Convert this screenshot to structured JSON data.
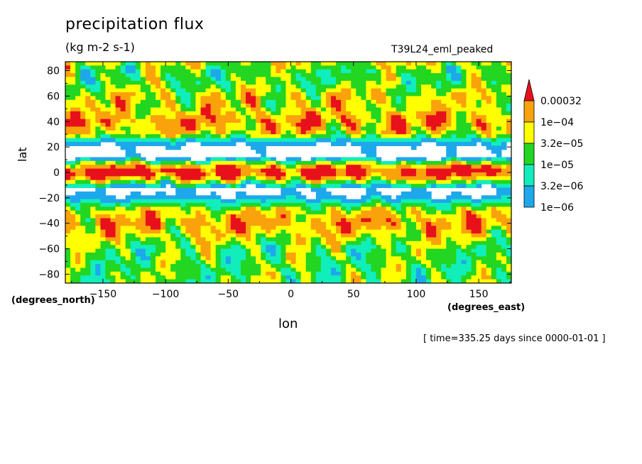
{
  "chart_data": {
    "type": "heatmap",
    "title": "precipitation flux",
    "units": "(kg m-2 s-1)",
    "run_label": "T39L24_eml_peaked",
    "xlabel": "lon",
    "xunits": "(degrees_east)",
    "ylabel": "lat",
    "yunits": "(degrees_north)",
    "timestamp": "[ time=335.25 days since 0000-01-01 ]",
    "xlim": [
      -180,
      176
    ],
    "ylim": [
      -87,
      87
    ],
    "xticks": [
      -150,
      -100,
      -50,
      0,
      50,
      100,
      150
    ],
    "yticks": [
      -80,
      -60,
      -40,
      -20,
      0,
      20,
      40,
      60,
      80
    ],
    "colorbar": {
      "labels": [
        "0.00032",
        "1e-04",
        "3.2e-05",
        "1e-05",
        "3.2e-06",
        "1e-06"
      ],
      "colors": [
        "#e8111b",
        "#f9a20b",
        "#ffff00",
        "#22d622",
        "#11eebb",
        "#1ea8ec"
      ],
      "extend": "max"
    },
    "latitude_profile": {
      "lat": [
        -87,
        -80,
        -70,
        -60,
        -50,
        -40,
        -30,
        -20,
        -14,
        -8,
        -4,
        0,
        4,
        8,
        12,
        18,
        24,
        30,
        40,
        50,
        60,
        70,
        80,
        87
      ],
      "typical_level_index": [
        3,
        3,
        3,
        3,
        2,
        1,
        2,
        5,
        6,
        3,
        1,
        0,
        1,
        3,
        6,
        6,
        5,
        2,
        1,
        2,
        2,
        3,
        3,
        2
      ]
    },
    "maxima": [
      {
        "lon": -100,
        "lat": 2,
        "level": "0.00032"
      },
      {
        "lon": -15,
        "lat": 0,
        "level": "0.00032"
      },
      {
        "lon": -132,
        "lat": 0,
        "level": "0.00032"
      },
      {
        "lon": 160,
        "lat": 2,
        "level": "0.00032"
      },
      {
        "lon": 138,
        "lat": 4,
        "level": "0.00032"
      }
    ]
  }
}
